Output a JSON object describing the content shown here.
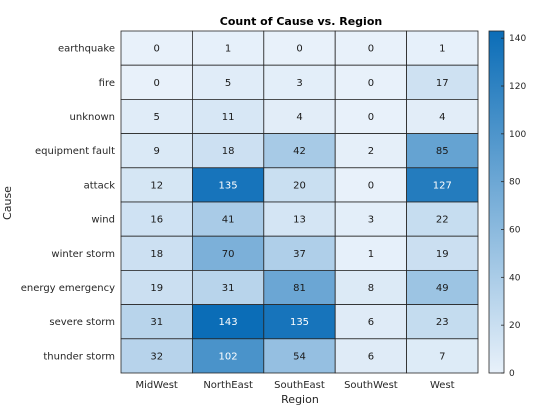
{
  "chart_data": {
    "type": "heatmap",
    "title": "Count of Cause vs. Region",
    "xlabel": "Region",
    "ylabel": "Cause",
    "x_categories": [
      "MidWest",
      "NorthEast",
      "SouthEast",
      "SouthWest",
      "West"
    ],
    "y_categories": [
      "earthquake",
      "fire",
      "unknown",
      "equipment fault",
      "attack",
      "wind",
      "winter storm",
      "energy emergency",
      "severe storm",
      "thunder storm"
    ],
    "values": [
      [
        0,
        1,
        0,
        0,
        1
      ],
      [
        0,
        5,
        3,
        0,
        17
      ],
      [
        5,
        11,
        4,
        0,
        4
      ],
      [
        9,
        18,
        42,
        2,
        85
      ],
      [
        12,
        135,
        20,
        0,
        127
      ],
      [
        16,
        41,
        13,
        3,
        22
      ],
      [
        18,
        70,
        37,
        1,
        19
      ],
      [
        19,
        31,
        81,
        8,
        49
      ],
      [
        31,
        143,
        135,
        6,
        23
      ],
      [
        32,
        102,
        54,
        6,
        7
      ]
    ],
    "colorbar": {
      "min": 0,
      "max": 143,
      "ticks": [
        0,
        20,
        40,
        60,
        80,
        100,
        120,
        140
      ]
    },
    "colors": {
      "low": "#e8f1fa",
      "high": "#0b6db7",
      "text_dark": "#1a1a1a",
      "text_light": "#ffffff"
    }
  }
}
